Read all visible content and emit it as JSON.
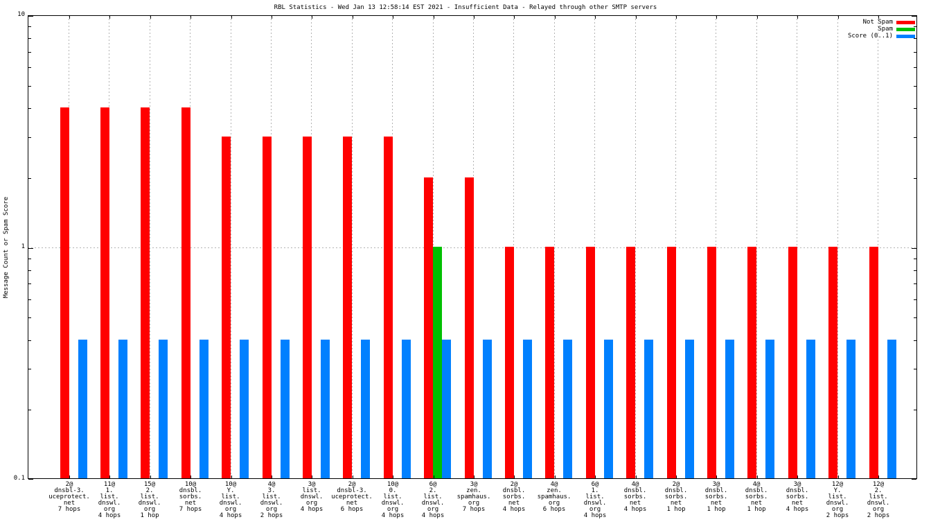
{
  "chart_data": {
    "type": "bar",
    "title": "RBL Statistics - Wed Jan 13 12:58:14 EST 2021 - Insufficient Data - Relayed through other SMTP servers",
    "ylabel": "Message Count or Spam Score",
    "yscale": "log",
    "ylim": [
      0.1,
      10
    ],
    "yticks": [
      {
        "value": 10,
        "label": "10"
      },
      {
        "value": 1,
        "label": "1"
      },
      {
        "value": 0.1,
        "label": "0.1"
      }
    ],
    "grid": {
      "horizontal_value": 1,
      "vertical_per_category": true,
      "color": "#b2b2b2",
      "style": "dashed"
    },
    "legend_position": "top-right-inside",
    "legend": [
      {
        "name": "Not Spam",
        "color": "#ff0000"
      },
      {
        "name": "Spam",
        "color": "#00c000"
      },
      {
        "name": "Score (0..1)",
        "color": "#0080ff"
      }
    ],
    "categories": [
      [
        "2@",
        "dnsbl-3.",
        "uceprotect.",
        "net",
        "7 hops"
      ],
      [
        "11@",
        "1.",
        "list.",
        "dnswl.",
        "org",
        "4 hops"
      ],
      [
        "15@",
        "2.",
        "list.",
        "dnswl.",
        "org",
        "1 hop"
      ],
      [
        "10@",
        "dnsbl.",
        "sorbs.",
        "net",
        "7 hops"
      ],
      [
        "10@",
        "Y.",
        "list.",
        "dnswl.",
        "org",
        "4 hops"
      ],
      [
        "4@",
        "3.",
        "list.",
        "dnswl.",
        "org",
        "2 hops"
      ],
      [
        "3@",
        "list.",
        "dnswl.",
        "org",
        "4 hops"
      ],
      [
        "2@",
        "dnsbl-3.",
        "uceprotect.",
        "net",
        "6 hops"
      ],
      [
        "10@",
        "0.",
        "list.",
        "dnswl.",
        "org",
        "4 hops"
      ],
      [
        "6@",
        "2.",
        "list.",
        "dnswl.",
        "org",
        "4 hops"
      ],
      [
        "3@",
        "zen.",
        "spamhaus.",
        "org",
        "7 hops"
      ],
      [
        "2@",
        "dnsbl.",
        "sorbs.",
        "net",
        "4 hops"
      ],
      [
        "4@",
        "zen.",
        "spamhaus.",
        "org",
        "6 hops"
      ],
      [
        "6@",
        "1.",
        "list.",
        "dnswl.",
        "org",
        "4 hops"
      ],
      [
        "4@",
        "dnsbl.",
        "sorbs.",
        "net",
        "4 hops"
      ],
      [
        "2@",
        "dnsbl.",
        "sorbs.",
        "net",
        "1 hop"
      ],
      [
        "3@",
        "dnsbl.",
        "sorbs.",
        "net",
        "1 hop"
      ],
      [
        "4@",
        "dnsbl.",
        "sorbs.",
        "net",
        "1 hop"
      ],
      [
        "3@",
        "dnsbl.",
        "sorbs.",
        "net",
        "4 hops"
      ],
      [
        "12@",
        "Y.",
        "list.",
        "dnswl.",
        "org",
        "2 hops"
      ],
      [
        "12@",
        "2.",
        "list.",
        "dnswl.",
        "org",
        "2 hops"
      ]
    ],
    "series": [
      {
        "name": "Not Spam",
        "color": "#ff0000",
        "values": [
          4,
          4,
          4,
          4,
          3,
          3,
          3,
          3,
          3,
          2,
          2,
          1,
          1,
          1,
          1,
          1,
          1,
          1,
          1,
          1,
          1
        ]
      },
      {
        "name": "Spam",
        "color": "#00c000",
        "values": [
          0,
          0,
          0,
          0,
          0,
          0,
          0,
          0,
          0,
          1,
          0,
          0,
          0,
          0,
          0,
          0,
          0,
          0,
          0,
          0,
          0
        ]
      },
      {
        "name": "Score (0..1)",
        "color": "#0080ff",
        "values": [
          0.4,
          0.4,
          0.4,
          0.4,
          0.4,
          0.4,
          0.4,
          0.4,
          0.4,
          0.4,
          0.4,
          0.4,
          0.4,
          0.4,
          0.4,
          0.4,
          0.4,
          0.4,
          0.4,
          0.4,
          0.4
        ]
      }
    ]
  }
}
